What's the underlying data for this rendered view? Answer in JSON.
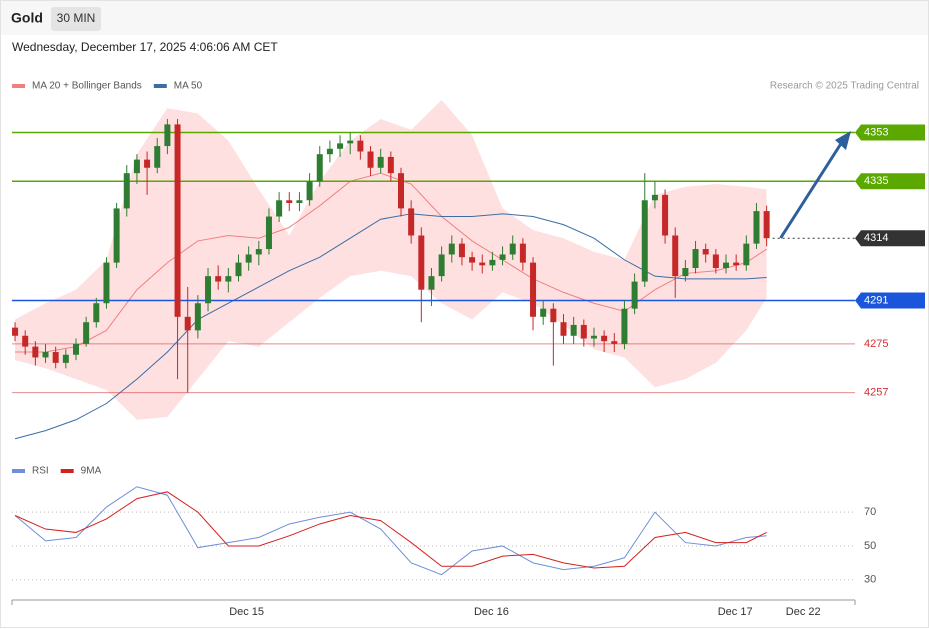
{
  "header": {
    "title": "Gold",
    "interval": "30 MIN",
    "date": "Wednesday, December 17, 2025 4:06:06 AM CET",
    "copyright": "Research © 2025 Trading Central"
  },
  "chart_data": [
    {
      "type": "candlestick",
      "up_color": "#2e7d32",
      "down_color": "#c62828",
      "ylim": [
        4234,
        4365
      ],
      "xlim": [
        -0.3,
        82.7
      ],
      "xticks": [
        {
          "value": 22.8,
          "label": "Dec 15"
        },
        {
          "value": 46.9,
          "label": "Dec 16"
        },
        {
          "value": 70.9,
          "label": "Dec 17"
        },
        {
          "value": 77.6,
          "label": "Dec 22"
        }
      ],
      "ohlc": [
        [
          4281,
          4283,
          4276,
          4278
        ],
        [
          4278,
          4280,
          4271,
          4274
        ],
        [
          4274,
          4276,
          4267,
          4270
        ],
        [
          4270,
          4275,
          4268,
          4272
        ],
        [
          4272,
          4274,
          4266,
          4268
        ],
        [
          4268,
          4273,
          4266,
          4271
        ],
        [
          4271,
          4277,
          4269,
          4275
        ],
        [
          4275,
          4285,
          4274,
          4283
        ],
        [
          4283,
          4292,
          4281,
          4290
        ],
        [
          4290,
          4307,
          4288,
          4305
        ],
        [
          4305,
          4327,
          4303,
          4325
        ],
        [
          4325,
          4341,
          4322,
          4338
        ],
        [
          4338,
          4345,
          4334,
          4343
        ],
        [
          4343,
          4346,
          4330,
          4340
        ],
        [
          4340,
          4351,
          4338,
          4348
        ],
        [
          4348,
          4358,
          4345,
          4356
        ],
        [
          4356,
          4358,
          4262,
          4285
        ],
        [
          4285,
          4296,
          4257,
          4280
        ],
        [
          4280,
          4293,
          4277,
          4290
        ],
        [
          4290,
          4303,
          4287,
          4300
        ],
        [
          4300,
          4304,
          4295,
          4298
        ],
        [
          4298,
          4303,
          4294,
          4300
        ],
        [
          4300,
          4308,
          4298,
          4305
        ],
        [
          4305,
          4311,
          4302,
          4308
        ],
        [
          4308,
          4313,
          4304,
          4310
        ],
        [
          4310,
          4325,
          4308,
          4322
        ],
        [
          4322,
          4331,
          4320,
          4328
        ],
        [
          4328,
          4331,
          4324,
          4327
        ],
        [
          4327,
          4331,
          4324,
          4328
        ],
        [
          4328,
          4338,
          4326,
          4335
        ],
        [
          4335,
          4348,
          4333,
          4345
        ],
        [
          4345,
          4350,
          4342,
          4347
        ],
        [
          4347,
          4352,
          4344,
          4349
        ],
        [
          4349,
          4353,
          4345,
          4350
        ],
        [
          4350,
          4352,
          4343,
          4346
        ],
        [
          4346,
          4348,
          4337,
          4340
        ],
        [
          4340,
          4347,
          4338,
          4344
        ],
        [
          4344,
          4346,
          4335,
          4338
        ],
        [
          4338,
          4340,
          4322,
          4325
        ],
        [
          4325,
          4328,
          4312,
          4315
        ],
        [
          4315,
          4318,
          4283,
          4295
        ],
        [
          4295,
          4303,
          4289,
          4300
        ],
        [
          4300,
          4311,
          4298,
          4308
        ],
        [
          4308,
          4315,
          4305,
          4312
        ],
        [
          4312,
          4314,
          4304,
          4307
        ],
        [
          4307,
          4309,
          4302,
          4305
        ],
        [
          4305,
          4308,
          4301,
          4304
        ],
        [
          4304,
          4309,
          4302,
          4306
        ],
        [
          4306,
          4311,
          4304,
          4308
        ],
        [
          4308,
          4315,
          4306,
          4312
        ],
        [
          4312,
          4314,
          4302,
          4305
        ],
        [
          4305,
          4307,
          4280,
          4285
        ],
        [
          4285,
          4291,
          4282,
          4288
        ],
        [
          4288,
          4290,
          4267,
          4283
        ],
        [
          4283,
          4286,
          4275,
          4278
        ],
        [
          4278,
          4285,
          4275,
          4282
        ],
        [
          4282,
          4284,
          4274,
          4277
        ],
        [
          4277,
          4281,
          4274,
          4278
        ],
        [
          4278,
          4280,
          4272,
          4276
        ],
        [
          4276,
          4279,
          4272,
          4275
        ],
        [
          4275,
          4291,
          4273,
          4288
        ],
        [
          4288,
          4301,
          4286,
          4298
        ],
        [
          4298,
          4338,
          4296,
          4328
        ],
        [
          4328,
          4335,
          4325,
          4330
        ],
        [
          4330,
          4332,
          4312,
          4315
        ],
        [
          4315,
          4318,
          4292,
          4300
        ],
        [
          4300,
          4306,
          4298,
          4303
        ],
        [
          4303,
          4313,
          4301,
          4310
        ],
        [
          4310,
          4312,
          4305,
          4308
        ],
        [
          4308,
          4310,
          4301,
          4303
        ],
        [
          4303,
          4308,
          4301,
          4305
        ],
        [
          4305,
          4308,
          4302,
          4304
        ],
        [
          4304,
          4315,
          4302,
          4312
        ],
        [
          4312,
          4327,
          4310,
          4324
        ],
        [
          4324,
          4326,
          4311,
          4314
        ]
      ],
      "x": [
        0,
        3,
        6,
        9,
        12,
        15,
        18,
        21,
        24,
        27,
        30,
        33,
        36,
        39,
        42,
        45,
        48,
        51,
        54,
        57,
        60,
        63,
        66,
        69,
        72,
        74
      ],
      "series": [
        {
          "name": "MA 20 + Bollinger Bands",
          "color": "#f08080",
          "band_color": "#ffe0e0",
          "values": [
            4272,
            4272,
            4274,
            4280,
            4295,
            4305,
            4313,
            4315,
            4314,
            4318,
            4326,
            4335,
            4338,
            4334,
            4322,
            4313,
            4306,
            4299,
            4294,
            4290,
            4287,
            4295,
            4301,
            4302,
            4305,
            4310
          ],
          "upper": [
            4284,
            4290,
            4295,
            4306,
            4345,
            4362,
            4360,
            4350,
            4332,
            4315,
            4335,
            4350,
            4358,
            4354,
            4365,
            4352,
            4325,
            4317,
            4314,
            4309,
            4306,
            4330,
            4333,
            4334,
            4333,
            4332
          ],
          "lower": [
            4269,
            4266,
            4262,
            4258,
            4247,
            4248,
            4262,
            4276,
            4274,
            4283,
            4292,
            4300,
            4302,
            4300,
            4290,
            4284,
            4294,
            4290,
            4282,
            4273,
            4270,
            4259,
            4262,
            4268,
            4280,
            4292
          ]
        },
        {
          "name": "MA 50",
          "color": "#3a6ea5",
          "values": [
            4240,
            4243,
            4247,
            4253,
            4262,
            4272,
            4284,
            4290,
            4296,
            4302,
            4307,
            4314,
            4321,
            4323,
            4322,
            4322,
            4323,
            4322,
            4319,
            4314,
            4306,
            4300,
            4299,
            4299,
            4299,
            4299.5
          ]
        }
      ],
      "levels": [
        {
          "value": 4353,
          "color": "#5aa800",
          "style": "box",
          "line": "solid"
        },
        {
          "value": 4335,
          "color": "#5aa800",
          "style": "box",
          "line": "solid"
        },
        {
          "value": 4314,
          "color": "#333333",
          "style": "box",
          "line": "dotted"
        },
        {
          "value": 4291,
          "color": "#1a56db",
          "style": "box",
          "line": "solid"
        },
        {
          "value": 4275,
          "color": "#d32f2f",
          "style": "text",
          "line": "solid"
        },
        {
          "value": 4257,
          "color": "#d32f2f",
          "style": "text",
          "line": "solid"
        }
      ]
    },
    {
      "type": "line",
      "ylim": [
        21,
        89
      ],
      "yticks": [
        30,
        50,
        70
      ],
      "grid": "dotted",
      "x": [
        0,
        3,
        6,
        9,
        12,
        15,
        18,
        21,
        24,
        27,
        30,
        33,
        36,
        39,
        42,
        45,
        48,
        51,
        54,
        57,
        60,
        63,
        66,
        69,
        72,
        74
      ],
      "series": [
        {
          "name": "RSI",
          "color": "#6f8fd8",
          "values": [
            68,
            53,
            55,
            73,
            85,
            80,
            49,
            52,
            55,
            63,
            67,
            70,
            60,
            40,
            33,
            47,
            50,
            40,
            36,
            38,
            43,
            70,
            52,
            50,
            55,
            56
          ]
        },
        {
          "name": "9MA",
          "color": "#d62020",
          "values": [
            68,
            60,
            58,
            66,
            78,
            82,
            70,
            50,
            50,
            56,
            63,
            68,
            65,
            52,
            38,
            38,
            44,
            45,
            40,
            37,
            38,
            55,
            58,
            52,
            52,
            58
          ]
        }
      ]
    }
  ]
}
